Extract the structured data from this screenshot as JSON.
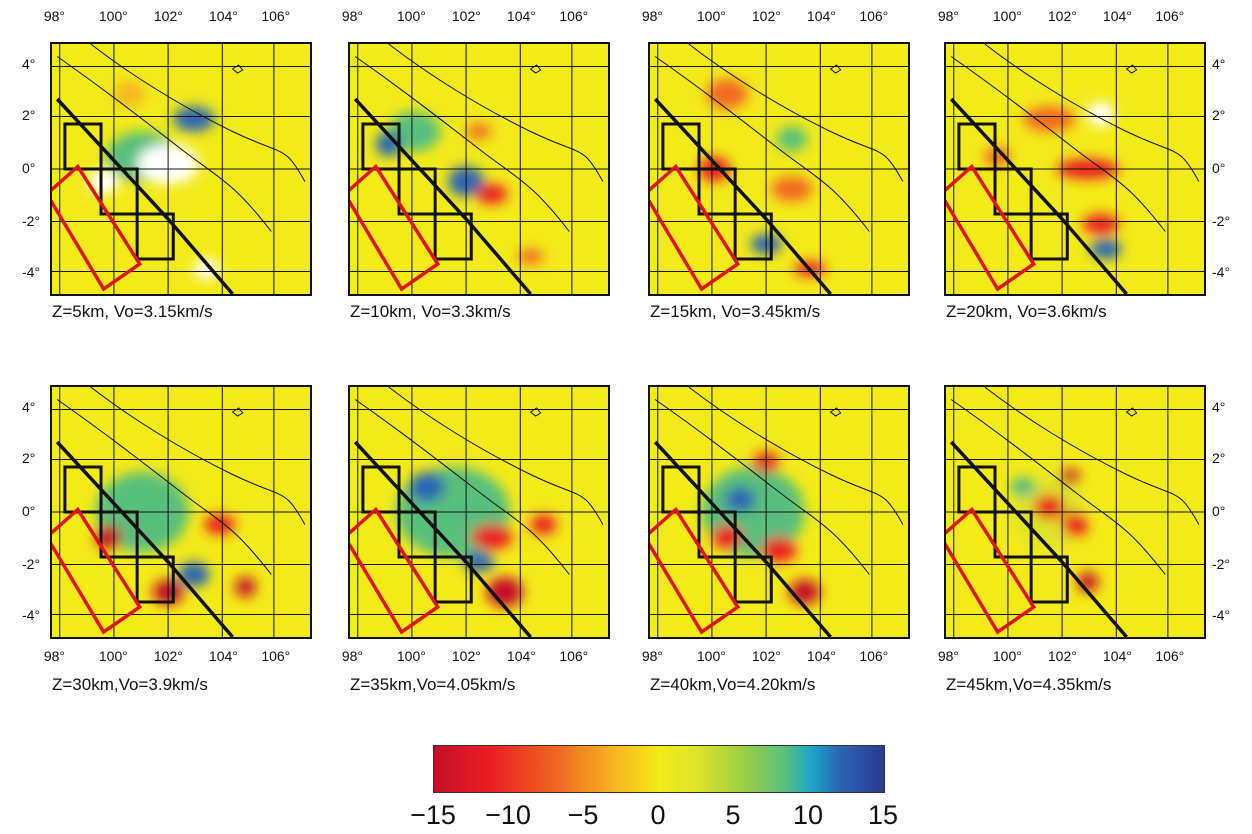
{
  "panels": [
    {
      "caption": "Z=5km, Vo=3.15km/s"
    },
    {
      "caption": "Z=10km, Vo=3.3km/s"
    },
    {
      "caption": "Z=15km, Vo=3.45km/s"
    },
    {
      "caption": "Z=20km, Vo=3.6km/s"
    },
    {
      "caption": "Z=30km,Vo=3.9km/s"
    },
    {
      "caption": "Z=35km,Vo=4.05km/s"
    },
    {
      "caption": "Z=40km,Vo=4.20km/s"
    },
    {
      "caption": "Z=45km,Vo=4.35km/s"
    }
  ],
  "axes": {
    "lon_labels": [
      "98°",
      "100°",
      "102°",
      "104°",
      "106°"
    ],
    "lat_labels": [
      "4°",
      "2°",
      "0°",
      "-2°",
      "-4°"
    ]
  },
  "colorbar": {
    "labels": [
      "−15",
      "−10",
      "−5",
      "0",
      "5",
      "10",
      "15"
    ],
    "colors": {
      "min": "#c4102a",
      "mid": "#f3ea1a",
      "max": "#2a3b93"
    }
  }
}
